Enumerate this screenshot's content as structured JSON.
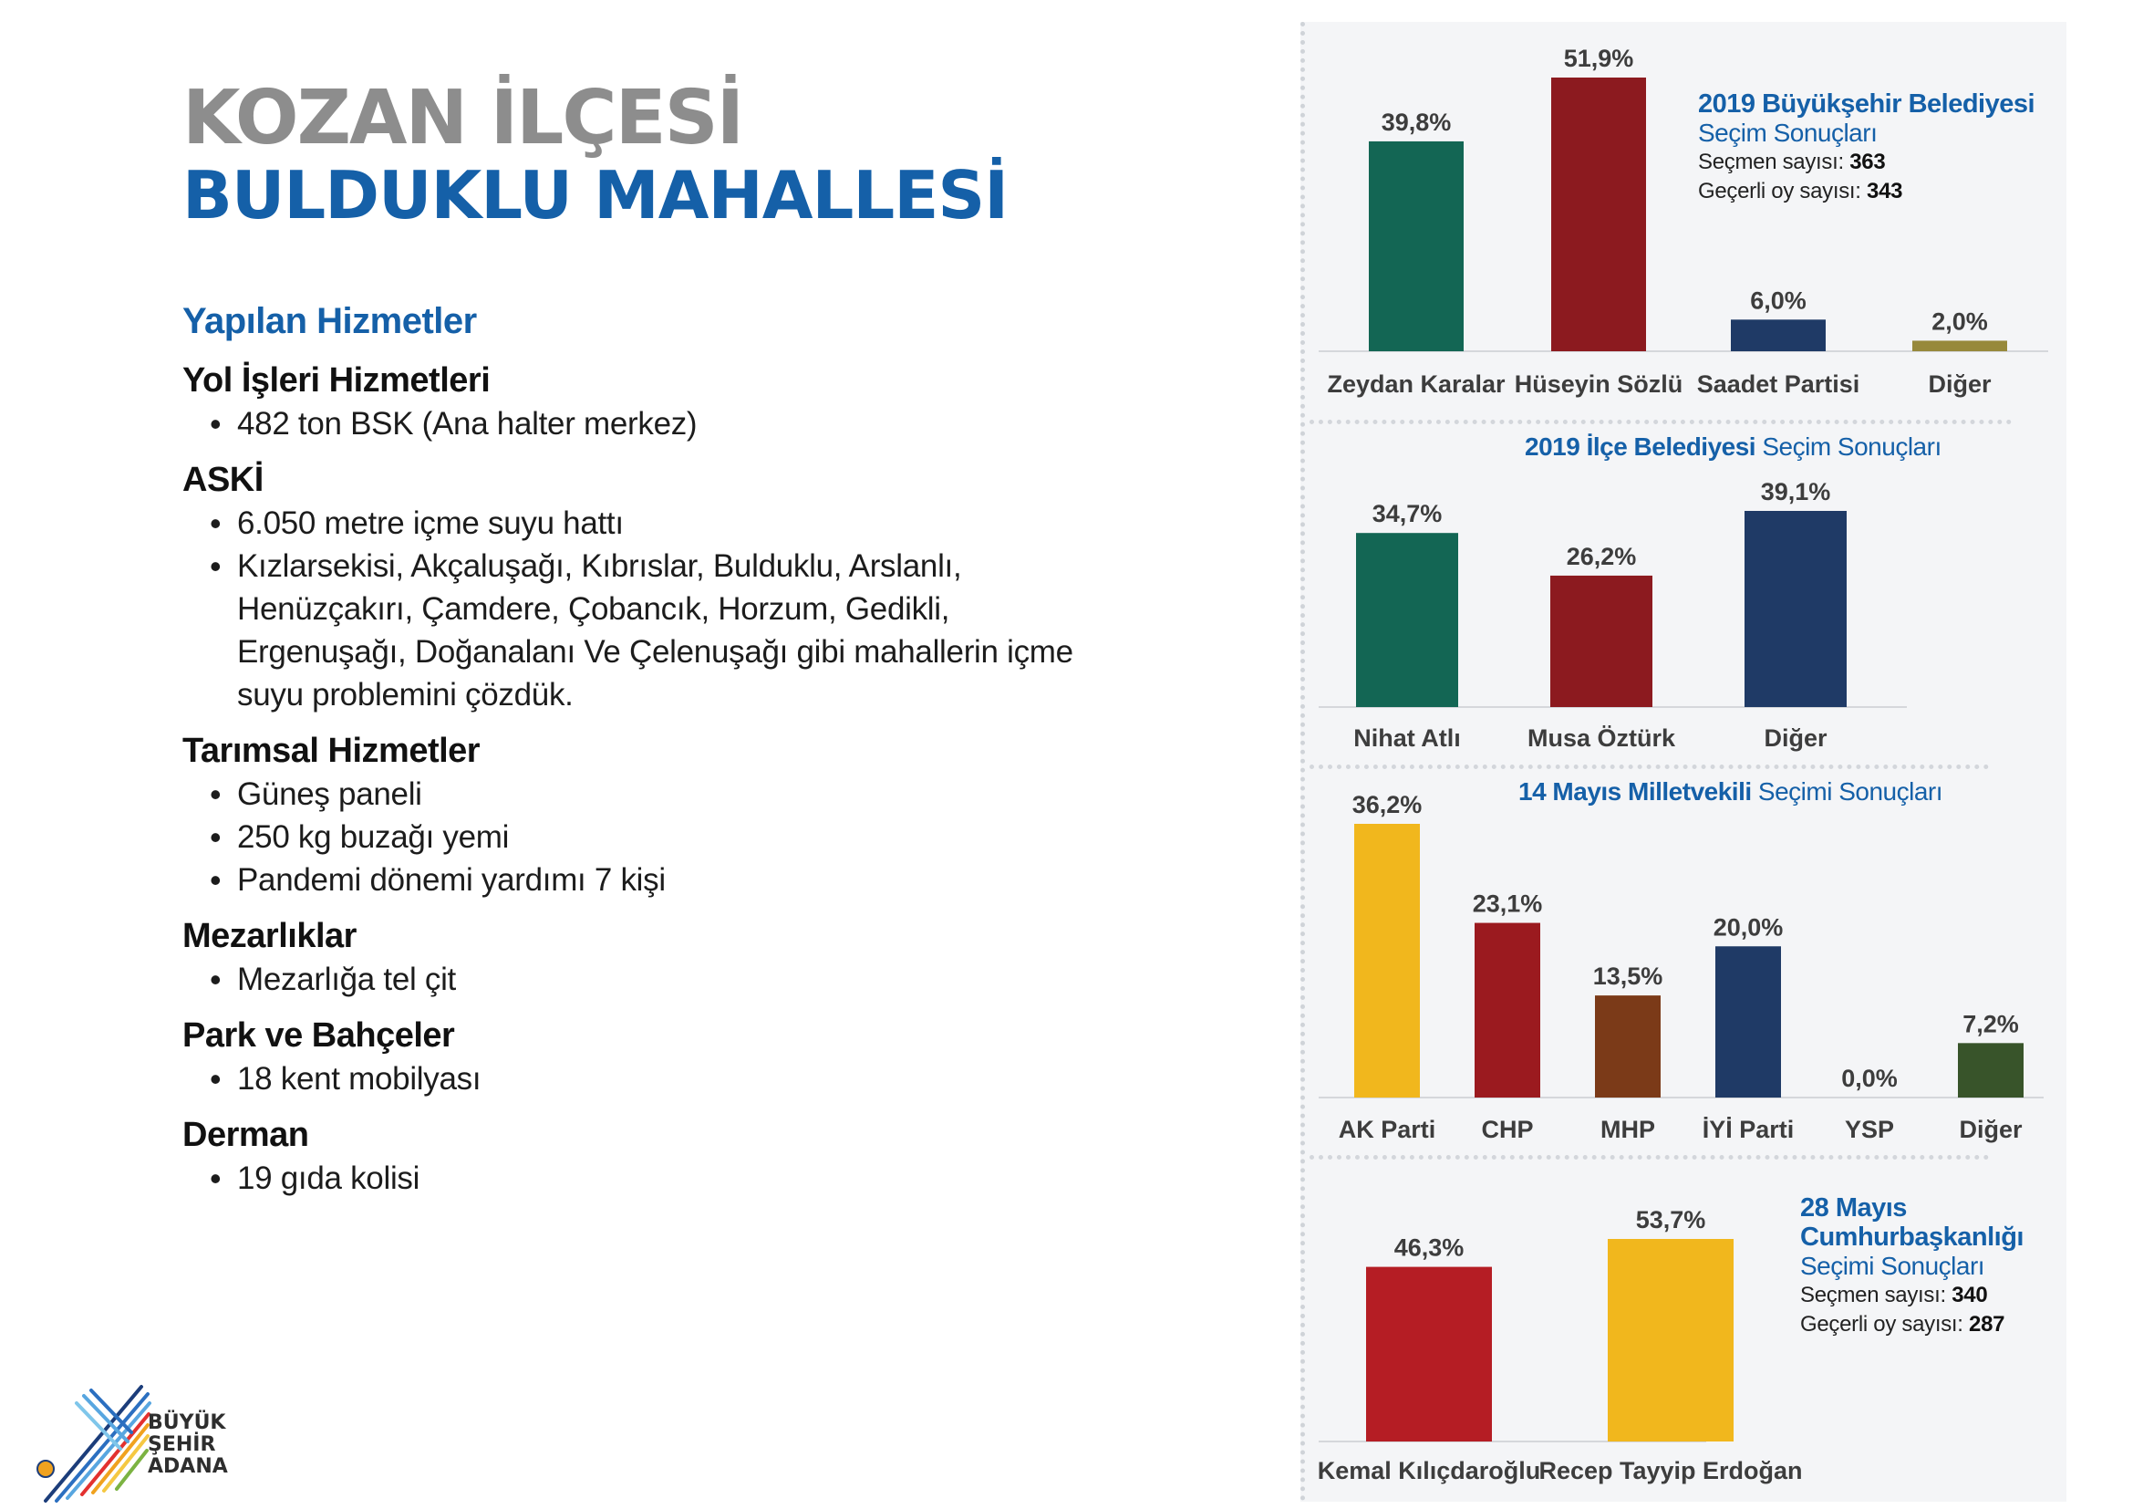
{
  "header": {
    "district": "KOZAN İLÇESİ",
    "neighborhood": "BULDUKLU MAHALLESİ"
  },
  "services": {
    "heading": "Yapılan Hizmetler",
    "categories": [
      {
        "title": "Yol İşleri Hizmetleri",
        "items": [
          "482 ton BSK (Ana halter merkez)"
        ]
      },
      {
        "title": "ASKİ",
        "items": [
          "6.050 metre içme suyu hattı",
          "Kızlarsekisi, Akçaluşağı, Kıbrıslar, Bulduklu, Arslanlı, Henüzçakırı, Çamdere, Çobancık, Horzum, Gedikli, Ergenuşağı, Doğanalanı Ve Çelenuşağı gibi mahallerin içme suyu problemini çözdük."
        ]
      },
      {
        "title": "Tarımsal Hizmetler",
        "items": [
          "Güneş paneli",
          "250 kg buzağı yemi",
          "Pandemi dönemi yardımı 7 kişi"
        ]
      },
      {
        "title": "Mezarlıklar",
        "items": [
          "Mezarlığa tel çit"
        ]
      },
      {
        "title": "Park ve Bahçeler",
        "items": [
          "18 kent mobilyası"
        ]
      },
      {
        "title": "Derman",
        "items": [
          "19 gıda kolisi"
        ]
      }
    ]
  },
  "panels": {
    "metropolitan": {
      "title_bold": "2019 Büyükşehir Belediyesi",
      "title_rest": "Seçim Sonuçları",
      "voters_label": "Seçmen sayısı:",
      "voters": "363",
      "valid_label": "Geçerli oy sayısı:",
      "valid": "343"
    },
    "district": {
      "title_bold": "2019 İlçe Belediyesi",
      "title_rest": "Seçim Sonuçları"
    },
    "parliament": {
      "title_bold": "14 Mayıs Milletvekili",
      "title_rest": "Seçimi Sonuçları"
    },
    "presidential": {
      "title_line1": "28 Mayıs",
      "title_line2": "Cumhurbaşkanlığı",
      "title_rest": "Seçimi Sonuçları",
      "voters_label": "Seçmen sayısı:",
      "voters": "340",
      "valid_label": "Geçerli oy sayısı:",
      "valid": "287"
    }
  },
  "chart_data": [
    {
      "type": "bar",
      "title": "2019 Büyükşehir Belediyesi Seçim Sonuçları",
      "categories": [
        "Zeydan Karalar",
        "Hüseyin Sözlü",
        "Saadet Partisi",
        "Diğer"
      ],
      "values": [
        39.8,
        51.9,
        6.0,
        2.0
      ],
      "labels": [
        "39,8%",
        "51,9%",
        "6,0%",
        "2,0%"
      ],
      "colors": [
        "#136654",
        "#8c1a1f",
        "#1f3a66",
        "#97893b"
      ],
      "ylim": [
        0,
        51.9
      ]
    },
    {
      "type": "bar",
      "title": "2019 İlçe Belediyesi Seçim Sonuçları",
      "categories": [
        "Nihat Atlı",
        "Musa Öztürk",
        "Diğer"
      ],
      "values": [
        34.7,
        26.2,
        39.1
      ],
      "labels": [
        "34,7%",
        "26,2%",
        "39,1%"
      ],
      "colors": [
        "#136654",
        "#8c1a1f",
        "#1f3a66"
      ],
      "ylim": [
        0,
        39.1
      ]
    },
    {
      "type": "bar",
      "title": "14 Mayıs Milletvekili Seçimi Sonuçları",
      "categories": [
        "AK Parti",
        "CHP",
        "MHP",
        "İYİ Parti",
        "YSP",
        "Diğer"
      ],
      "values": [
        36.2,
        23.1,
        13.5,
        20.0,
        0.0,
        7.2
      ],
      "labels": [
        "36,2%",
        "23,1%",
        "13,5%",
        "20,0%",
        "0,0%",
        "7,2%"
      ],
      "colors": [
        "#f1b71d",
        "#9b1a1f",
        "#7b3a18",
        "#1f3a66",
        "#7a2a70",
        "#38542a"
      ],
      "ylim": [
        0,
        36.2
      ]
    },
    {
      "type": "bar",
      "title": "28 Mayıs Cumhurbaşkanlığı Seçimi Sonuçları",
      "categories": [
        "Kemal Kılıçdaroğlu",
        "Recep Tayyip Erdoğan"
      ],
      "values": [
        46.3,
        53.7
      ],
      "labels": [
        "46,3%",
        "53,7%"
      ],
      "colors": [
        "#b51d24",
        "#f1b71d"
      ],
      "ylim": [
        0,
        53.7
      ]
    }
  ],
  "logo": {
    "line1": "BÜYÜK",
    "line2": "ŞEHİR",
    "line3": "ADANA"
  }
}
